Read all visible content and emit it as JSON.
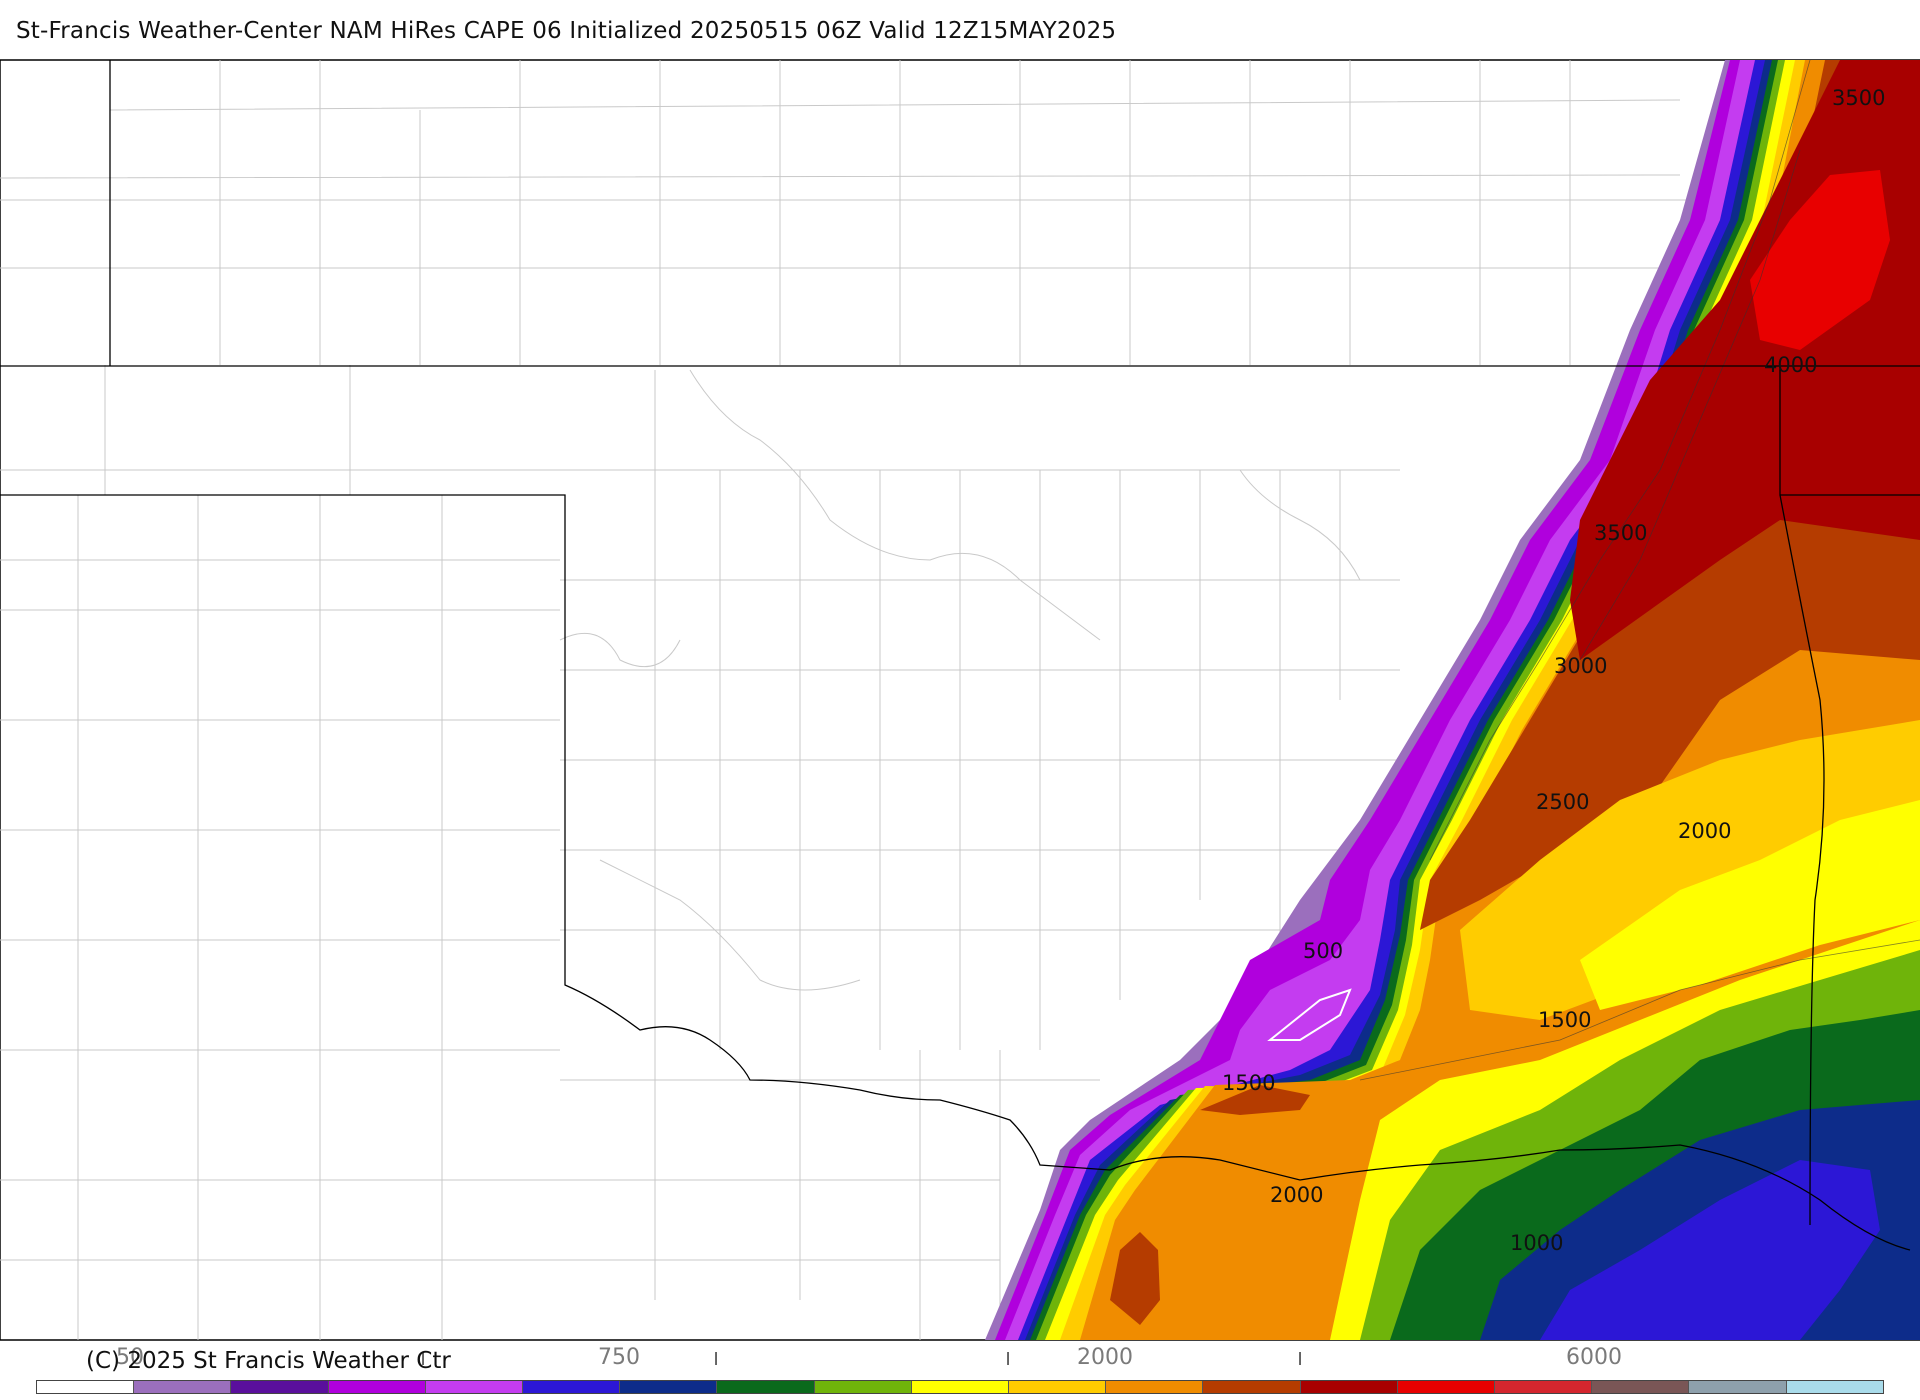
{
  "title": "St-Francis Weather-Center NAM HiRes CAPE  06 Initialized 20250515 06Z Valid 12Z15MAY2025",
  "credit": "(C) 2025 St Francis Weather Ctr",
  "map": {
    "contour_labels": [
      "3500",
      "4000",
      "3500",
      "3000",
      "2500",
      "2000",
      "500",
      "1500",
      "1500",
      "2000",
      "1000"
    ]
  },
  "colorbar": {
    "tick_labels": [
      "50",
      "I",
      "750",
      "I",
      "I",
      "2000",
      "I",
      "6000"
    ],
    "colors": [
      "#ffffff",
      "#9b6fbd",
      "#5a0f9c",
      "#b000dd",
      "#c43cf0",
      "#2c17d6",
      "#0d2c8a",
      "#0a6a1c",
      "#6fb40a",
      "#ffff00",
      "#ffcc00",
      "#f08c00",
      "#b53c00",
      "#a80000",
      "#e80000",
      "#d4262e",
      "#7a5656",
      "#8ea0ac",
      "#a9dbea"
    ]
  }
}
